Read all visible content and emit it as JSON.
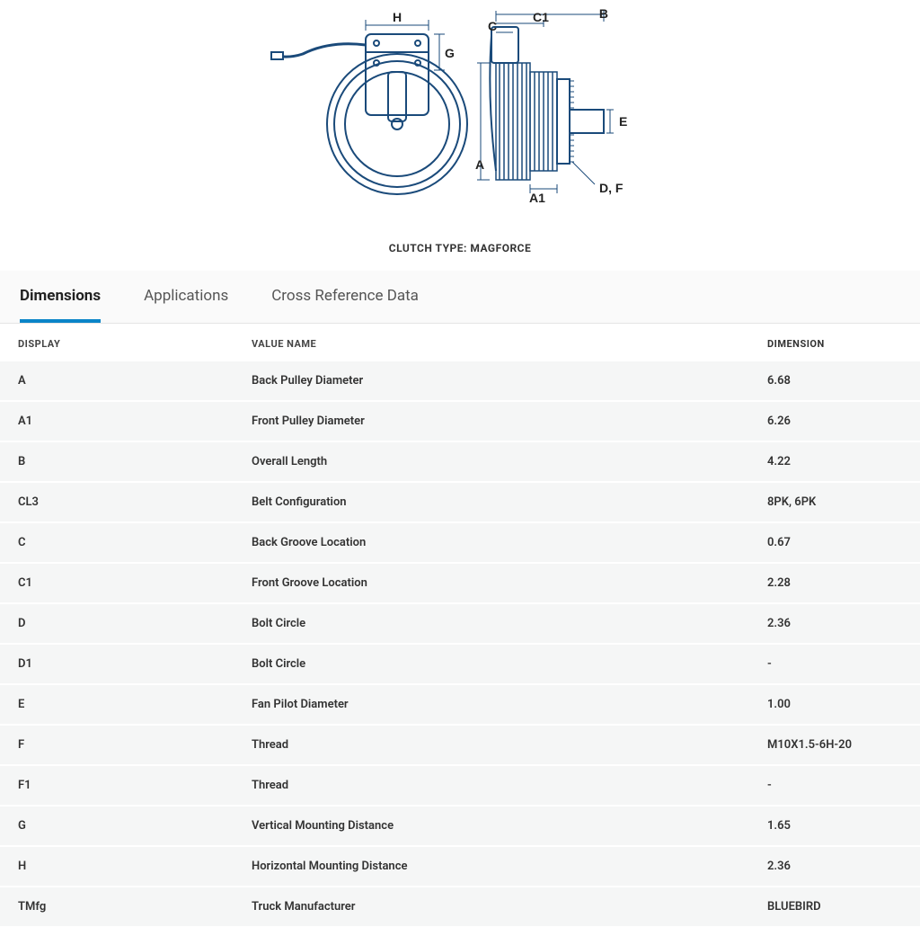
{
  "diagram": {
    "stroke": "#1a4a7a",
    "stroke_width": 2,
    "label_font": "Arial",
    "label_size": 14,
    "labels_front": [
      "H",
      "G"
    ],
    "labels_side": [
      "A",
      "A1",
      "B",
      "C",
      "C1",
      "D, F",
      "E"
    ]
  },
  "caption_prefix": "CLUTCH TYPE: ",
  "caption_value": "MAGFORCE",
  "tabs": [
    {
      "label": "Dimensions",
      "active": true
    },
    {
      "label": "Applications",
      "active": false
    },
    {
      "label": "Cross Reference Data",
      "active": false
    }
  ],
  "table": {
    "headers": {
      "display": "DISPLAY",
      "value_name": "VALUE NAME",
      "dimension": "DIMENSION"
    },
    "rows": [
      {
        "display": "A",
        "value_name": "Back Pulley Diameter",
        "dimension": "6.68"
      },
      {
        "display": "A1",
        "value_name": "Front Pulley Diameter",
        "dimension": "6.26"
      },
      {
        "display": "B",
        "value_name": "Overall Length",
        "dimension": "4.22"
      },
      {
        "display": "CL3",
        "value_name": "Belt Configuration",
        "dimension": "8PK, 6PK"
      },
      {
        "display": "C",
        "value_name": "Back Groove Location",
        "dimension": "0.67"
      },
      {
        "display": "C1",
        "value_name": "Front Groove Location",
        "dimension": "2.28"
      },
      {
        "display": "D",
        "value_name": "Bolt Circle",
        "dimension": "2.36"
      },
      {
        "display": "D1",
        "value_name": "Bolt Circle",
        "dimension": "-"
      },
      {
        "display": "E",
        "value_name": "Fan Pilot Diameter",
        "dimension": "1.00"
      },
      {
        "display": "F",
        "value_name": "Thread",
        "dimension": "M10X1.5-6H-20"
      },
      {
        "display": "F1",
        "value_name": "Thread",
        "dimension": "-"
      },
      {
        "display": "G",
        "value_name": "Vertical Mounting Distance",
        "dimension": "1.65"
      },
      {
        "display": "H",
        "value_name": "Horizontal Mounting Distance",
        "dimension": "2.36"
      },
      {
        "display": "TMfg",
        "value_name": "Truck Manufacturer",
        "dimension": "BLUEBIRD"
      }
    ]
  },
  "colors": {
    "tab_active_border": "#0a84c8",
    "row_bg": "#f5f6f6",
    "border": "#e5e5e5",
    "text": "#333333"
  }
}
